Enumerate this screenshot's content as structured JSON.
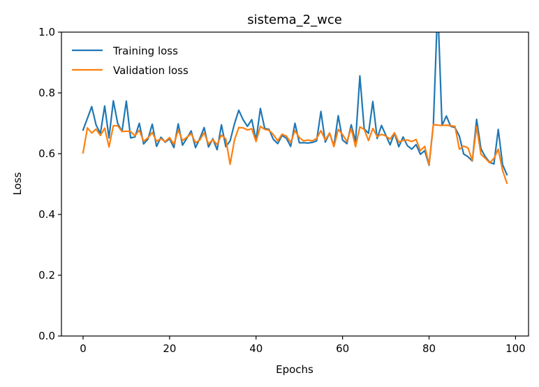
{
  "chart_data": {
    "type": "line",
    "title": "sistema_2_wce",
    "xlabel": "Epochs",
    "ylabel": "Loss",
    "xlim": [
      -5,
      103
    ],
    "ylim": [
      0,
      1.0
    ],
    "xticks": [
      0,
      20,
      40,
      60,
      80,
      100
    ],
    "yticks": [
      0.0,
      0.2,
      0.4,
      0.6,
      0.8,
      1.0
    ],
    "xtick_labels": [
      "0",
      "20",
      "40",
      "60",
      "80",
      "100"
    ],
    "ytick_labels": [
      "0.0",
      "0.2",
      "0.4",
      "0.6",
      "0.8",
      "1.0"
    ],
    "grid": false,
    "legend_position": "upper-left",
    "series": [
      {
        "name": "Training loss",
        "color": "#1f77b4",
        "y": [
          0.678,
          0.716,
          0.755,
          0.695,
          0.666,
          0.757,
          0.652,
          0.774,
          0.7,
          0.673,
          0.773,
          0.652,
          0.655,
          0.7,
          0.632,
          0.648,
          0.697,
          0.624,
          0.654,
          0.638,
          0.649,
          0.62,
          0.698,
          0.628,
          0.651,
          0.675,
          0.62,
          0.65,
          0.686,
          0.622,
          0.649,
          0.613,
          0.695,
          0.623,
          0.642,
          0.698,
          0.743,
          0.712,
          0.69,
          0.712,
          0.644,
          0.749,
          0.683,
          0.68,
          0.647,
          0.633,
          0.66,
          0.651,
          0.624,
          0.7,
          0.636,
          0.636,
          0.635,
          0.637,
          0.642,
          0.739,
          0.638,
          0.668,
          0.625,
          0.725,
          0.645,
          0.633,
          0.695,
          0.64,
          0.856,
          0.682,
          0.667,
          0.772,
          0.65,
          0.693,
          0.661,
          0.629,
          0.668,
          0.623,
          0.655,
          0.626,
          0.615,
          0.63,
          0.598,
          0.61,
          0.562,
          0.697,
          1.09,
          0.693,
          0.724,
          0.69,
          0.686,
          0.658,
          0.599,
          0.59,
          0.576,
          0.713,
          0.616,
          0.59,
          0.572,
          0.566,
          0.68,
          0.564,
          0.531
        ]
      },
      {
        "name": "Validation loss",
        "color": "#ff7f0e",
        "y": [
          0.603,
          0.685,
          0.668,
          0.681,
          0.66,
          0.684,
          0.622,
          0.692,
          0.692,
          0.673,
          0.674,
          0.673,
          0.659,
          0.677,
          0.641,
          0.652,
          0.67,
          0.641,
          0.649,
          0.64,
          0.653,
          0.631,
          0.678,
          0.643,
          0.654,
          0.666,
          0.636,
          0.645,
          0.669,
          0.632,
          0.646,
          0.63,
          0.661,
          0.649,
          0.565,
          0.645,
          0.686,
          0.685,
          0.678,
          0.682,
          0.64,
          0.69,
          0.68,
          0.677,
          0.663,
          0.642,
          0.664,
          0.658,
          0.637,
          0.676,
          0.653,
          0.642,
          0.645,
          0.642,
          0.65,
          0.676,
          0.645,
          0.668,
          0.623,
          0.68,
          0.663,
          0.64,
          0.683,
          0.623,
          0.688,
          0.68,
          0.643,
          0.683,
          0.656,
          0.664,
          0.658,
          0.648,
          0.669,
          0.638,
          0.644,
          0.645,
          0.64,
          0.647,
          0.61,
          0.624,
          0.564,
          0.696,
          0.694,
          0.693,
          0.694,
          0.692,
          0.69,
          0.615,
          0.625,
          0.619,
          0.578,
          0.689,
          0.598,
          0.585,
          0.57,
          0.584,
          0.615,
          0.545,
          0.503
        ]
      }
    ]
  }
}
